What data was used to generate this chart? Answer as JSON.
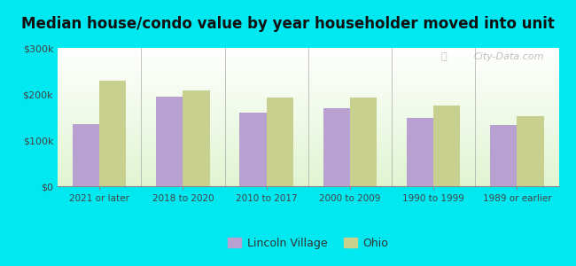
{
  "title": "Median house/condo value by year householder moved into unit",
  "categories": [
    "2021 or later",
    "2018 to 2020",
    "2010 to 2017",
    "2000 to 2009",
    "1990 to 1999",
    "1989 or earlier"
  ],
  "lincoln_village": [
    135000,
    195000,
    160000,
    170000,
    148000,
    133000
  ],
  "ohio": [
    228000,
    207000,
    193000,
    192000,
    175000,
    152000
  ],
  "bar_color_lincoln": "#b8a0d0",
  "bar_color_ohio": "#c8d090",
  "background_fig": "#00e8f0",
  "ylim": [
    0,
    300000
  ],
  "yticks": [
    0,
    100000,
    200000,
    300000
  ],
  "ytick_labels": [
    "$0",
    "$100k",
    "$200k",
    "$300k"
  ],
  "title_fontsize": 12,
  "legend_labels": [
    "Lincoln Village",
    "Ohio"
  ],
  "watermark": "City-Data.com"
}
